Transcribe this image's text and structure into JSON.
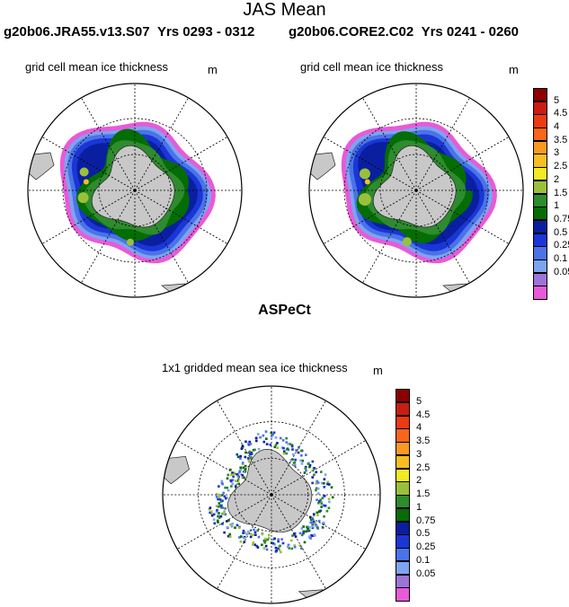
{
  "title": "JAS Mean",
  "panels": [
    {
      "case": "g20b06.JRA55.v13.S07",
      "years": "Yrs 0293 - 0312",
      "subtitle": "grid cell mean ice thickness",
      "unit": "m"
    },
    {
      "case": "g20b06.CORE2.C02",
      "years": "Yrs 0241 - 0260",
      "subtitle": "grid cell mean ice thickness",
      "unit": "m"
    }
  ],
  "observation": {
    "title": "ASPeCt",
    "subtitle": "1x1 gridded mean sea ice thickness",
    "unit": "m"
  },
  "colorbar": {
    "labels": [
      "5",
      "4.5",
      "4",
      "3.5",
      "3",
      "2.5",
      "2",
      "1.5",
      "1",
      "0.75",
      "0.5",
      "0.25",
      "0.1",
      "0.05"
    ],
    "colors": [
      "#8b0000",
      "#c81d10",
      "#ee3a12",
      "#f7661a",
      "#f99922",
      "#f6be22",
      "#f1ea25",
      "#9ac03b",
      "#2e8b2e",
      "#046d04",
      "#0a1fa0",
      "#1a36d6",
      "#4a73e8",
      "#7da4f0",
      "#9d74d8",
      "#e85ad8"
    ]
  },
  "colors": {
    "land": "#c8c8c8",
    "land_outline": "#222222",
    "grid": "#000000"
  }
}
